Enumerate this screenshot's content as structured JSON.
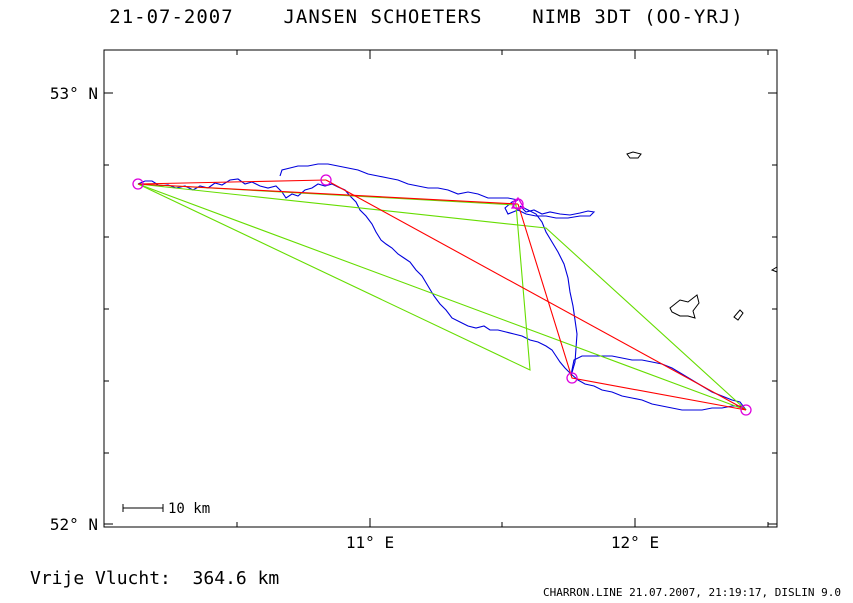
{
  "title": "21-07-2007    JANSEN SCHOETERS    NIMB 3DT (OO-YRJ)",
  "map": {
    "lat_labels": [
      "53° N",
      "52° N"
    ],
    "lon_labels": [
      "11° E",
      "12° E"
    ],
    "scale_bar_label": "10 km"
  },
  "footer": {
    "distance_text": "Vrije Vlucht:  364.6 km",
    "credit_text": "CHARRON.LINE 21.07.2007, 21:19:17, DISLIN 9.0"
  },
  "colors": {
    "track": "#0000dd",
    "task_legs": "#ff0000",
    "triangle_legs": "#66dd00",
    "turnpoints": "#dd00dd",
    "coastline": "#000000"
  }
}
